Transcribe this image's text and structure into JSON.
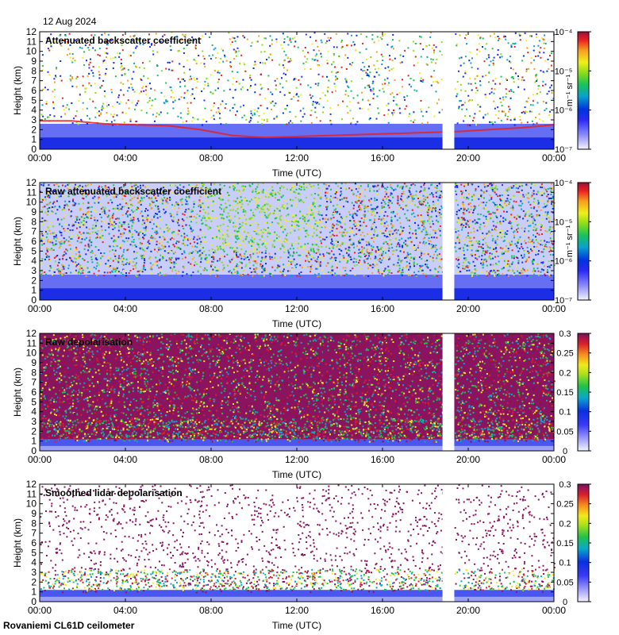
{
  "date": "12 Aug 2024",
  "footer": "Rovaniemi CL61D ceilometer",
  "chart_data": [
    {
      "type": "heatmap",
      "title": "Attenuated backscatter coefficient",
      "xlabel": "Time (UTC)",
      "ylabel": "Height (km)",
      "x_ticks": [
        "00:00",
        "04:00",
        "08:00",
        "12:00",
        "16:00",
        "20:00",
        "00:00"
      ],
      "y_ticks": [
        0,
        1,
        2,
        3,
        4,
        5,
        6,
        7,
        8,
        9,
        10,
        11,
        12
      ],
      "ylim": [
        0,
        12
      ],
      "colorbar": {
        "scale": "log",
        "range": [
          1e-07,
          0.0001
        ],
        "unit": "m⁻¹ sr⁻¹",
        "ticks": [
          "10⁻⁴",
          "10⁻⁵",
          "10⁻⁶",
          "10⁻⁷"
        ]
      },
      "data_gap_hours": [
        18.8,
        19.35
      ],
      "cloud_base_km": [
        2.9,
        2.9,
        2.6,
        2.5,
        2.4,
        2.0,
        1.4,
        1.2,
        1.3,
        1.4,
        1.5,
        1.6,
        1.7,
        1.8,
        2.0,
        2.2,
        2.5
      ]
    },
    {
      "type": "heatmap",
      "title": "Raw attenuated backscatter coefficient",
      "xlabel": "Time (UTC)",
      "ylabel": "Height (km)",
      "x_ticks": [
        "00:00",
        "04:00",
        "08:00",
        "12:00",
        "16:00",
        "20:00",
        "00:00"
      ],
      "y_ticks": [
        0,
        1,
        2,
        3,
        4,
        5,
        6,
        7,
        8,
        9,
        10,
        11,
        12
      ],
      "ylim": [
        0,
        12
      ],
      "colorbar": {
        "scale": "log",
        "range": [
          1e-07,
          0.0001
        ],
        "unit": "m⁻¹ sr⁻¹",
        "ticks": [
          "10⁻⁴",
          "10⁻⁵",
          "10⁻⁶",
          "10⁻⁷"
        ]
      },
      "data_gap_hours": [
        18.8,
        19.35
      ]
    },
    {
      "type": "heatmap",
      "title": "Raw depolarisation",
      "xlabel": "Time (UTC)",
      "ylabel": "Height (km)",
      "x_ticks": [
        "00:00",
        "04:00",
        "08:00",
        "12:00",
        "16:00",
        "20:00",
        "00:00"
      ],
      "y_ticks": [
        0,
        1,
        2,
        3,
        4,
        5,
        6,
        7,
        8,
        9,
        10,
        11,
        12
      ],
      "ylim": [
        0,
        12
      ],
      "colorbar": {
        "scale": "linear",
        "range": [
          0,
          0.3
        ],
        "ticks": [
          "0.3",
          "0.25",
          "0.2",
          "0.15",
          "0.1",
          "0.05",
          "0"
        ]
      },
      "data_gap_hours": [
        18.8,
        19.35
      ]
    },
    {
      "type": "heatmap",
      "title": "Smoothed lidar depolarisation",
      "xlabel": "Time (UTC)",
      "ylabel": "Height (km)",
      "x_ticks": [
        "00:00",
        "04:00",
        "08:00",
        "12:00",
        "16:00",
        "20:00",
        "00:00"
      ],
      "y_ticks": [
        0,
        1,
        2,
        3,
        4,
        5,
        6,
        7,
        8,
        9,
        10,
        11,
        12
      ],
      "ylim": [
        0,
        12
      ],
      "colorbar": {
        "scale": "linear",
        "range": [
          0,
          0.3
        ],
        "ticks": [
          "0.3",
          "0.25",
          "0.2",
          "0.15",
          "0.1",
          "0.05",
          "0"
        ]
      },
      "data_gap_hours": [
        18.8,
        19.35
      ]
    }
  ]
}
